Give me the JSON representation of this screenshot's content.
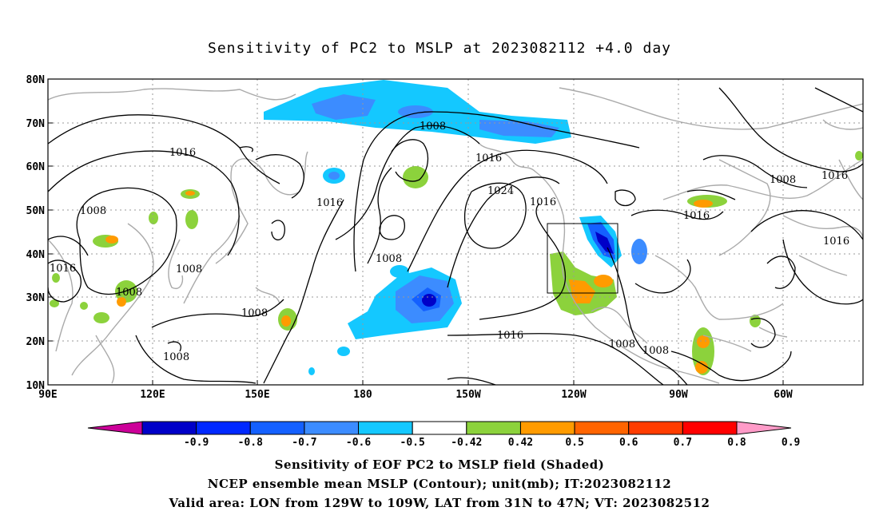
{
  "title": "Sensitivity of PC2 to MSLP at 2023082112 +4.0 day",
  "lat_labels": [
    "80N",
    "70N",
    "60N",
    "50N",
    "40N",
    "30N",
    "20N",
    "10N"
  ],
  "lon_labels": [
    "90E",
    "120E",
    "150E",
    "180",
    "150W",
    "120W",
    "90W",
    "60W"
  ],
  "contour_labels": [
    "1008",
    "1016",
    "1008",
    "1016",
    "1024",
    "1016",
    "1008",
    "1016",
    "1008",
    "1008",
    "1008",
    "1008",
    "1008",
    "1016",
    "1008",
    "1016",
    "1016",
    "1016",
    "1016",
    "1008"
  ],
  "colorbar": {
    "tick_labels": [
      "-0.9",
      "-0.8",
      "-0.7",
      "-0.6",
      "-0.5",
      "-0.42",
      "0.42",
      "0.5",
      "0.6",
      "0.7",
      "0.8",
      "0.9"
    ],
    "colors": [
      "#cc0099",
      "#0000c8",
      "#0028ff",
      "#1460ff",
      "#3c8cff",
      "#14c8ff",
      "#ffffff",
      "#8cd23c",
      "#ff9b00",
      "#ff6400",
      "#ff3c00",
      "#ff0000",
      "#ff9bc8"
    ]
  },
  "caption": {
    "line1": "Sensitivity of EOF PC2 to MSLP field (Shaded)",
    "line2": "NCEP ensemble mean MSLP (Contour); unit(mb); IT:2023082112",
    "line3": "Valid area: LON from 129W to 109W, LAT from 31N to 47N; VT: 2023082512"
  }
}
